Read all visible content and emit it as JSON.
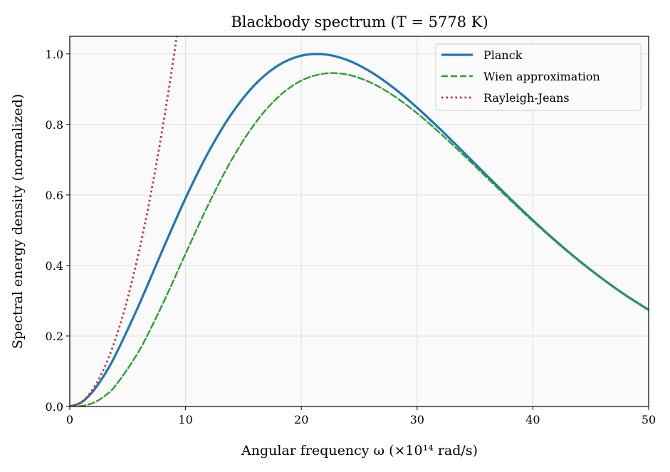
{
  "chart_data": {
    "type": "line",
    "title": "Blackbody spectrum (T = 5778 K)",
    "xlabel": "Angular frequency ω (×10¹⁴ rad/s)",
    "ylabel": "Spectral energy density (normalized)",
    "xlim": [
      0,
      50
    ],
    "ylim": [
      0,
      1.05
    ],
    "xticks": [
      0,
      10,
      20,
      30,
      40,
      50
    ],
    "yticks": [
      0.0,
      0.2,
      0.4,
      0.6,
      0.8,
      1.0
    ],
    "xtick_labels": [
      "0",
      "10",
      "20",
      "30",
      "40",
      "50"
    ],
    "ytick_labels": [
      "0.0",
      "0.2",
      "0.4",
      "0.6",
      "0.8",
      "1.0"
    ],
    "grid": true,
    "legend_position": "top-right",
    "series": [
      {
        "name": "Planck",
        "color": "#1f77b4",
        "style": "solid",
        "x": [
          0,
          1,
          2,
          3,
          4,
          6,
          8,
          10,
          12,
          14,
          16,
          18,
          20,
          22,
          24,
          26,
          28,
          30,
          32,
          34,
          36,
          38,
          40,
          42,
          44,
          46,
          48,
          50
        ],
        "y": [
          0,
          0.0115,
          0.043,
          0.0902,
          0.1493,
          0.29,
          0.4428,
          0.5908,
          0.7227,
          0.8312,
          0.9131,
          0.9673,
          0.995,
          0.9989,
          0.9824,
          0.9491,
          0.9031,
          0.8477,
          0.7863,
          0.7216,
          0.6558,
          0.5909,
          0.5282,
          0.4689,
          0.4135,
          0.3625,
          0.3159,
          0.274
        ]
      },
      {
        "name": "Wien approximation",
        "color": "#2ca02c",
        "style": "dashed",
        "x": [
          0,
          1,
          2,
          3,
          4,
          6,
          8,
          10,
          12,
          14,
          16,
          18,
          20,
          22,
          24,
          26,
          28,
          30,
          32,
          34,
          36,
          38,
          40,
          42,
          44,
          46,
          48,
          50
        ],
        "y": [
          0,
          0.0014,
          0.01,
          0.0295,
          0.0613,
          0.1588,
          0.289,
          0.4333,
          0.5748,
          0.7007,
          0.803,
          0.8777,
          0.9243,
          0.9444,
          0.9413,
          0.9186,
          0.8808,
          0.8317,
          0.7749,
          0.7135,
          0.6501,
          0.587,
          0.5256,
          0.4671,
          0.4122,
          0.3616,
          0.3154,
          0.2737
        ]
      },
      {
        "name": "Rayleigh-Jeans",
        "color": "#d62728",
        "style": "dotted",
        "x": [
          0,
          1,
          2,
          3,
          4,
          5,
          6,
          7,
          8,
          9,
          10
        ],
        "y": [
          0,
          0.0123,
          0.0492,
          0.1107,
          0.1967,
          0.3074,
          0.4427,
          0.6025,
          0.7869,
          0.9959,
          1.2296
        ]
      }
    ]
  }
}
